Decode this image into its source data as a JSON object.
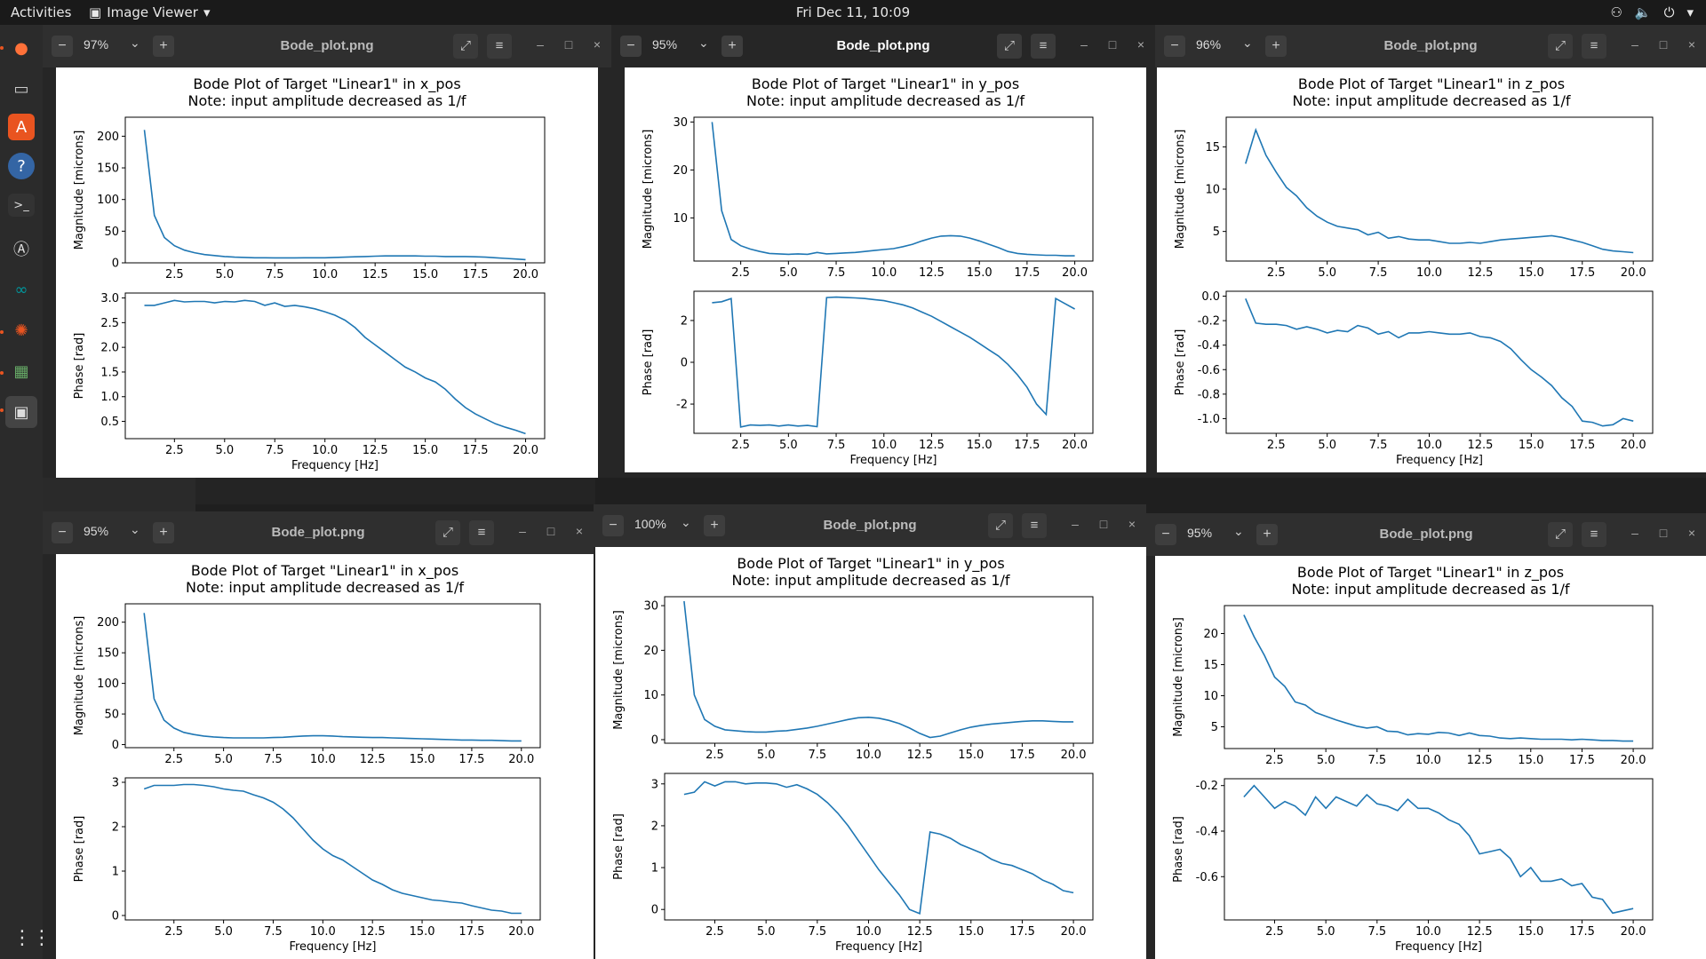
{
  "topbar": {
    "activities": "Activities",
    "app_name": "Image Viewer",
    "clock": "Fri Dec 11, 10:09"
  },
  "dock": {
    "items": [
      "firefox-icon",
      "files-icon",
      "software-center-icon",
      "help-icon",
      "terminal-icon",
      "updater-icon",
      "arduino-icon",
      "settings-gear-icon",
      "circuit-board-icon",
      "image-viewer-icon",
      "show-apps-icon"
    ]
  },
  "colors": {
    "line": "#1f77b4"
  },
  "windows": [
    {
      "title": "Bode_plot.png",
      "zoom": "97%",
      "active": false
    },
    {
      "title": "Bode_plot.png",
      "zoom": "95%",
      "active": true
    },
    {
      "title": "Bode_plot.png",
      "zoom": "96%",
      "active": false
    },
    {
      "title": "Bode_plot.png",
      "zoom": "95%",
      "active": false
    },
    {
      "title": "Bode_plot.png",
      "zoom": "100%",
      "active": false
    },
    {
      "title": "Bode_plot.png",
      "zoom": "95%",
      "active": false
    }
  ],
  "chart_data": [
    {
      "type": "line",
      "title": "Bode Plot of Target \"Linear1\" in x_pos\nNote: input amplitude decreased as 1/f",
      "xlabel": "Frequency [Hz]",
      "mag_ylabel": "Magnitude [microns]",
      "phase_ylabel": "Phase [rad]",
      "x": [
        1.0,
        1.5,
        2.0,
        2.5,
        3.0,
        3.5,
        4.0,
        4.5,
        5.0,
        5.5,
        6.0,
        6.5,
        7.0,
        7.5,
        8.0,
        8.5,
        9.0,
        9.5,
        10.0,
        10.5,
        11.0,
        11.5,
        12.0,
        12.5,
        13.0,
        13.5,
        14.0,
        14.5,
        15.0,
        15.5,
        16.0,
        16.5,
        17.0,
        17.5,
        18.0,
        18.5,
        19.0,
        19.5,
        20.0
      ],
      "magnitude": [
        210,
        75,
        40,
        27,
        20,
        16,
        13,
        11.5,
        10,
        9,
        8.5,
        8,
        8,
        7.8,
        7.8,
        7.8,
        8,
        8,
        8,
        8.5,
        9,
        9.5,
        10,
        10.5,
        11,
        11,
        11,
        11,
        10.5,
        10.5,
        10,
        10,
        10,
        9.5,
        9,
        8,
        7,
        6,
        5
      ],
      "phase": [
        2.85,
        2.85,
        2.9,
        2.95,
        2.92,
        2.93,
        2.93,
        2.9,
        2.93,
        2.92,
        2.95,
        2.93,
        2.85,
        2.9,
        2.83,
        2.85,
        2.82,
        2.78,
        2.72,
        2.65,
        2.55,
        2.4,
        2.2,
        2.05,
        1.9,
        1.75,
        1.6,
        1.5,
        1.38,
        1.3,
        1.15,
        0.95,
        0.78,
        0.65,
        0.55,
        0.45,
        0.38,
        0.32,
        0.25
      ],
      "xticks": [
        "2.5",
        "5.0",
        "7.5",
        "10.0",
        "12.5",
        "15.0",
        "17.5",
        "20.0"
      ],
      "mag_ylim": [
        0,
        230
      ],
      "mag_yticks": [
        "0",
        "50",
        "100",
        "150",
        "200"
      ],
      "phase_ylim": [
        0.15,
        3.1
      ],
      "phase_yticks": [
        "0.5",
        "1.0",
        "1.5",
        "2.0",
        "2.5",
        "3.0"
      ]
    },
    {
      "type": "line",
      "title": "Bode Plot of Target \"Linear1\" in y_pos\nNote: input amplitude decreased as 1/f",
      "xlabel": "Frequency [Hz]",
      "mag_ylabel": "Magnitude [microns]",
      "phase_ylabel": "Phase [rad]",
      "x": [
        1.0,
        1.5,
        2.0,
        2.5,
        3.0,
        3.5,
        4.0,
        4.5,
        5.0,
        5.5,
        6.0,
        6.5,
        7.0,
        7.5,
        8.0,
        8.5,
        9.0,
        9.5,
        10.0,
        10.5,
        11.0,
        11.5,
        12.0,
        12.5,
        13.0,
        13.5,
        14.0,
        14.5,
        15.0,
        15.5,
        16.0,
        16.5,
        17.0,
        17.5,
        18.0,
        18.5,
        19.0,
        19.5,
        20.0
      ],
      "magnitude": [
        30,
        11.5,
        5.5,
        4.2,
        3.5,
        3,
        2.6,
        2.5,
        2.4,
        2.5,
        2.4,
        2.8,
        2.5,
        2.6,
        2.7,
        2.8,
        3,
        3.2,
        3.4,
        3.6,
        4,
        4.5,
        5.2,
        5.8,
        6.2,
        6.3,
        6.2,
        5.8,
        5.2,
        4.5,
        3.8,
        3,
        2.6,
        2.4,
        2.3,
        2.2,
        2.2,
        2.1,
        2.1
      ],
      "phase": [
        2.85,
        2.9,
        3.05,
        -3.1,
        -3.0,
        -3.02,
        -3.0,
        -3.05,
        -3.0,
        -3.05,
        -3.02,
        -3.08,
        3.1,
        3.12,
        3.1,
        3.08,
        3.05,
        3.0,
        2.95,
        2.85,
        2.75,
        2.6,
        2.4,
        2.2,
        1.95,
        1.7,
        1.45,
        1.2,
        0.9,
        0.6,
        0.3,
        -0.1,
        -0.6,
        -1.2,
        -2.0,
        -2.5,
        3.05,
        2.8,
        2.55
      ],
      "xticks": [
        "2.5",
        "5.0",
        "7.5",
        "10.0",
        "12.5",
        "15.0",
        "17.5",
        "20.0"
      ],
      "mag_ylim": [
        1,
        31
      ],
      "mag_yticks": [
        "10",
        "20",
        "30"
      ],
      "phase_ylim": [
        -3.4,
        3.4
      ],
      "phase_yticks": [
        "-2",
        "0",
        "2"
      ]
    },
    {
      "type": "line",
      "title": "Bode Plot of Target \"Linear1\" in z_pos\nNote: input amplitude decreased as 1/f",
      "xlabel": "Frequency [Hz]",
      "mag_ylabel": "Magnitude [microns]",
      "phase_ylabel": "Phase [rad]",
      "x": [
        1.0,
        1.5,
        2.0,
        2.5,
        3.0,
        3.5,
        4.0,
        4.5,
        5.0,
        5.5,
        6.0,
        6.5,
        7.0,
        7.5,
        8.0,
        8.5,
        9.0,
        9.5,
        10.0,
        10.5,
        11.0,
        11.5,
        12.0,
        12.5,
        13.0,
        13.5,
        14.0,
        14.5,
        15.0,
        15.5,
        16.0,
        16.5,
        17.0,
        17.5,
        18.0,
        18.5,
        19.0,
        19.5,
        20.0
      ],
      "magnitude": [
        13,
        17,
        14,
        12,
        10.2,
        9.2,
        7.8,
        6.8,
        6.1,
        5.6,
        5.4,
        5.2,
        4.6,
        4.9,
        4.2,
        4.4,
        4.1,
        4.0,
        4.0,
        3.8,
        3.6,
        3.6,
        3.7,
        3.6,
        3.8,
        4.0,
        4.1,
        4.2,
        4.3,
        4.4,
        4.5,
        4.3,
        4.0,
        3.7,
        3.3,
        2.9,
        2.7,
        2.6,
        2.5
      ],
      "phase": [
        -0.02,
        -0.22,
        -0.23,
        -0.23,
        -0.24,
        -0.27,
        -0.25,
        -0.27,
        -0.3,
        -0.28,
        -0.29,
        -0.24,
        -0.26,
        -0.31,
        -0.29,
        -0.34,
        -0.3,
        -0.3,
        -0.29,
        -0.3,
        -0.31,
        -0.31,
        -0.3,
        -0.33,
        -0.34,
        -0.37,
        -0.43,
        -0.52,
        -0.6,
        -0.66,
        -0.73,
        -0.83,
        -0.9,
        -1.02,
        -1.03,
        -1.06,
        -1.05,
        -1.0,
        -1.02
      ],
      "xticks": [
        "2.5",
        "5.0",
        "7.5",
        "10.0",
        "12.5",
        "15.0",
        "17.5",
        "20.0"
      ],
      "mag_ylim": [
        1.5,
        18.5
      ],
      "mag_yticks": [
        "5",
        "10",
        "15"
      ],
      "phase_ylim": [
        -1.12,
        0.04
      ],
      "phase_yticks": [
        "-1.0",
        "-0.8",
        "-0.6",
        "-0.4",
        "-0.2",
        "0.0"
      ]
    },
    {
      "type": "line",
      "title": "Bode Plot of Target \"Linear1\" in x_pos\nNote: input amplitude decreased as 1/f",
      "xlabel": "Frequency [Hz]",
      "mag_ylabel": "Magnitude [microns]",
      "phase_ylabel": "Phase [rad]",
      "x": [
        1.0,
        1.5,
        2.0,
        2.5,
        3.0,
        3.5,
        4.0,
        4.5,
        5.0,
        5.5,
        6.0,
        6.5,
        7.0,
        7.5,
        8.0,
        8.5,
        9.0,
        9.5,
        10.0,
        10.5,
        11.0,
        11.5,
        12.0,
        12.5,
        13.0,
        13.5,
        14.0,
        14.5,
        15.0,
        15.5,
        16.0,
        16.5,
        17.0,
        17.5,
        18.0,
        18.5,
        19.0,
        19.5,
        20.0
      ],
      "magnitude": [
        215,
        75,
        40,
        27,
        20,
        16.5,
        14,
        12.5,
        11.5,
        11,
        11,
        11,
        11,
        11.5,
        12,
        13,
        14,
        14.5,
        14.5,
        14,
        13,
        12.5,
        12,
        11.5,
        11.5,
        11,
        10.5,
        10,
        9.5,
        9,
        8.5,
        8,
        7.5,
        7.5,
        7,
        7,
        6.5,
        6,
        6
      ],
      "phase": [
        2.85,
        2.93,
        2.93,
        2.93,
        2.95,
        2.95,
        2.93,
        2.9,
        2.85,
        2.82,
        2.8,
        2.72,
        2.65,
        2.55,
        2.4,
        2.2,
        1.95,
        1.7,
        1.5,
        1.35,
        1.25,
        1.1,
        0.95,
        0.8,
        0.7,
        0.58,
        0.5,
        0.45,
        0.4,
        0.35,
        0.33,
        0.3,
        0.28,
        0.22,
        0.17,
        0.12,
        0.1,
        0.05,
        0.05
      ],
      "xticks": [
        "2.5",
        "5.0",
        "7.5",
        "10.0",
        "12.5",
        "15.0",
        "17.5",
        "20.0"
      ],
      "mag_ylim": [
        -5,
        230
      ],
      "mag_yticks": [
        "0",
        "50",
        "100",
        "150",
        "200"
      ],
      "phase_ylim": [
        -0.1,
        3.1
      ],
      "phase_yticks": [
        "0",
        "1",
        "2",
        "3"
      ]
    },
    {
      "type": "line",
      "title": "Bode Plot of Target \"Linear1\" in y_pos\nNote: input amplitude decreased as 1/f",
      "xlabel": "Frequency [Hz]",
      "mag_ylabel": "Magnitude [microns]",
      "phase_ylabel": "Phase [rad]",
      "x": [
        1.0,
        1.5,
        2.0,
        2.5,
        3.0,
        3.5,
        4.0,
        4.5,
        5.0,
        5.5,
        6.0,
        6.5,
        7.0,
        7.5,
        8.0,
        8.5,
        9.0,
        9.5,
        10.0,
        10.5,
        11.0,
        11.5,
        12.0,
        12.5,
        13.0,
        13.5,
        14.0,
        14.5,
        15.0,
        15.5,
        16.0,
        16.5,
        17.0,
        17.5,
        18.0,
        18.5,
        19.0,
        19.5,
        20.0
      ],
      "magnitude": [
        31,
        10,
        4.5,
        3,
        2.2,
        2,
        1.8,
        1.7,
        1.7,
        1.9,
        2,
        2.3,
        2.6,
        3,
        3.5,
        4,
        4.5,
        4.9,
        5,
        4.8,
        4.3,
        3.6,
        2.6,
        1.4,
        0.5,
        0.8,
        1.5,
        2.2,
        2.8,
        3.2,
        3.5,
        3.7,
        3.9,
        4.1,
        4.2,
        4.2,
        4.1,
        4.0,
        4.0
      ],
      "phase": [
        2.75,
        2.8,
        3.05,
        2.95,
        3.05,
        3.05,
        3.0,
        3.02,
        3.02,
        3.0,
        2.92,
        2.98,
        2.88,
        2.75,
        2.55,
        2.3,
        2.0,
        1.65,
        1.3,
        0.95,
        0.65,
        0.35,
        0.0,
        -0.1,
        1.85,
        1.8,
        1.7,
        1.55,
        1.45,
        1.35,
        1.2,
        1.1,
        1.05,
        0.95,
        0.85,
        0.7,
        0.6,
        0.45,
        0.4
      ],
      "xticks": [
        "2.5",
        "5.0",
        "7.5",
        "10.0",
        "12.5",
        "15.0",
        "17.5",
        "20.0"
      ],
      "mag_ylim": [
        -0.8,
        32
      ],
      "mag_yticks": [
        "0",
        "10",
        "20",
        "30"
      ],
      "phase_ylim": [
        -0.25,
        3.25
      ],
      "phase_yticks": [
        "0",
        "1",
        "2",
        "3"
      ]
    },
    {
      "type": "line",
      "title": "Bode Plot of Target \"Linear1\" in z_pos\nNote: input amplitude decreased as 1/f",
      "xlabel": "Frequency [Hz]",
      "mag_ylabel": "Magnitude [microns]",
      "phase_ylabel": "Phase [rad]",
      "x": [
        1.0,
        1.5,
        2.0,
        2.5,
        3.0,
        3.5,
        4.0,
        4.5,
        5.0,
        5.5,
        6.0,
        6.5,
        7.0,
        7.5,
        8.0,
        8.5,
        9.0,
        9.5,
        10.0,
        10.5,
        11.0,
        11.5,
        12.0,
        12.5,
        13.0,
        13.5,
        14.0,
        14.5,
        15.0,
        15.5,
        16.0,
        16.5,
        17.0,
        17.5,
        18.0,
        18.5,
        19.0,
        19.5,
        20.0
      ],
      "magnitude": [
        23,
        19.5,
        16.5,
        13,
        11.5,
        9,
        8.5,
        7.3,
        6.7,
        6.1,
        5.6,
        5.1,
        4.8,
        5.0,
        4.3,
        4.2,
        3.7,
        3.9,
        3.8,
        4.1,
        4.0,
        3.6,
        4.0,
        3.6,
        3.5,
        3.2,
        3.1,
        3.2,
        3.1,
        3.0,
        3.0,
        3.0,
        2.9,
        3.0,
        2.9,
        2.8,
        2.8,
        2.7,
        2.7
      ],
      "phase": [
        -0.25,
        -0.2,
        -0.25,
        -0.3,
        -0.27,
        -0.29,
        -0.33,
        -0.25,
        -0.3,
        -0.25,
        -0.27,
        -0.29,
        -0.24,
        -0.28,
        -0.29,
        -0.31,
        -0.26,
        -0.3,
        -0.3,
        -0.32,
        -0.35,
        -0.37,
        -0.42,
        -0.5,
        -0.49,
        -0.48,
        -0.52,
        -0.6,
        -0.56,
        -0.62,
        -0.62,
        -0.61,
        -0.64,
        -0.63,
        -0.69,
        -0.7,
        -0.76,
        -0.75,
        -0.74
      ],
      "xticks": [
        "2.5",
        "5.0",
        "7.5",
        "10.0",
        "12.5",
        "15.0",
        "17.5",
        "20.0"
      ],
      "mag_ylim": [
        1.5,
        24.5
      ],
      "mag_yticks": [
        "5",
        "10",
        "15",
        "20"
      ],
      "phase_ylim": [
        -0.79,
        -0.17
      ],
      "phase_yticks": [
        "-0.6",
        "-0.4",
        "-0.2"
      ]
    }
  ]
}
